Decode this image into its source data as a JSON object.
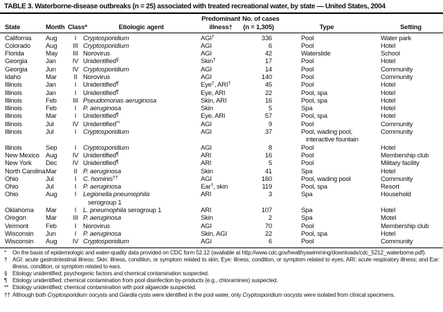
{
  "title": "TABLE 3. Waterborne-disease outbreaks (n = 25) associated with treated recreational water, by state — United States, 2004",
  "table": {
    "headers": {
      "state": "State",
      "month": "Month",
      "class": "Class*",
      "agent": "Etiologic agent",
      "illness_top": "Predominant",
      "illness_bottom": "illness†",
      "cases_top": "No. of cases",
      "cases_bottom": "(n = 1,305)",
      "type": "Type",
      "setting": "Setting"
    },
    "rows": [
      {
        "state": "California",
        "month": "Aug",
        "class": "I",
        "agent": [
          {
            "t": "Cryptosporidium",
            "i": true
          }
        ],
        "illness": [
          {
            "t": "AGI"
          },
          {
            "t": "†",
            "s": true
          }
        ],
        "cases": "336",
        "type": "Pool",
        "setting": "Water park"
      },
      {
        "state": "Colorado",
        "month": "Aug",
        "class": "III",
        "agent": [
          {
            "t": "Cryptosporidium",
            "i": true
          }
        ],
        "illness": "AGI",
        "cases": "6",
        "type": "Pool",
        "setting": "Hotel"
      },
      {
        "state": "Florida",
        "month": "May",
        "class": "III",
        "agent": "Norovirus",
        "illness": "AGI",
        "cases": "42",
        "type": "Waterslide",
        "setting": "School"
      },
      {
        "state": "Georgia",
        "month": "Jan",
        "class": "IV",
        "agent": [
          {
            "t": "Unidentified"
          },
          {
            "t": "§",
            "s": true
          }
        ],
        "illness": [
          {
            "t": "Skin"
          },
          {
            "t": "†",
            "s": true
          }
        ],
        "cases": "17",
        "type": "Pool",
        "setting": "Hotel"
      },
      {
        "state": "Georgia",
        "month": "Jun",
        "class": "IV",
        "agent": [
          {
            "t": "Cryptosporidium",
            "i": true
          }
        ],
        "illness": "AGI",
        "cases": "14",
        "type": "Pool",
        "setting": "Community"
      },
      {
        "state": "Idaho",
        "month": "Mar",
        "class": "II",
        "agent": "Norovirus",
        "illness": "AGI",
        "cases": "140",
        "type": "Pool",
        "setting": "Community"
      },
      {
        "state": "Illinois",
        "month": "Jan",
        "class": "I",
        "agent": [
          {
            "t": "Unidentified"
          },
          {
            "t": "¶",
            "s": true
          }
        ],
        "illness": [
          {
            "t": "Eye"
          },
          {
            "t": "†",
            "s": true
          },
          {
            "t": ", ARI"
          },
          {
            "t": "†",
            "s": true
          }
        ],
        "cases": "45",
        "type": "Pool",
        "setting": "Hotel"
      },
      {
        "state": "Illinois",
        "month": "Jan",
        "class": "I",
        "agent": [
          {
            "t": "Unidentified"
          },
          {
            "t": "¶",
            "s": true
          }
        ],
        "illness": "Eye, ARI",
        "cases": "22",
        "type": "Pool, spa",
        "setting": "Hotel"
      },
      {
        "state": "Illinois",
        "month": "Feb",
        "class": "III",
        "agent": [
          {
            "t": "Pseudomonas aeruginosa",
            "i": true
          }
        ],
        "illness": "Skin, ARI",
        "cases": "16",
        "type": "Pool, spa",
        "setting": "Hotel"
      },
      {
        "state": "Illinois",
        "month": "Feb",
        "class": "I",
        "agent": [
          {
            "t": "P. aeruginosa",
            "i": true
          }
        ],
        "illness": "Skin",
        "cases": "5",
        "type": "Spa",
        "setting": "Hotel"
      },
      {
        "state": "Illinois",
        "month": "Mar",
        "class": "I",
        "agent": [
          {
            "t": "Unidentified"
          },
          {
            "t": "¶",
            "s": true
          }
        ],
        "illness": "Eye, ARI",
        "cases": "57",
        "type": "Pool, spa",
        "setting": "Hotel"
      },
      {
        "state": "Illinois",
        "month": "Jul",
        "class": "IV",
        "agent": [
          {
            "t": "Unidentified"
          },
          {
            "t": "**",
            "s": true
          }
        ],
        "illness": "AGI",
        "cases": "9",
        "type": "Pool",
        "setting": "Community"
      },
      {
        "state": "Illinois",
        "month": "Jul",
        "class": "I",
        "agent": [
          {
            "t": "Cryptosporidium",
            "i": true
          }
        ],
        "illness": "AGI",
        "cases": "37",
        "type": [
          {
            "t": "Pool, wading pool,"
          },
          {
            "br": true
          },
          {
            "t": "interactive fountain",
            "ind": true
          }
        ],
        "setting": "Community"
      },
      {
        "state": "Illinois",
        "month": "Sep",
        "class": "I",
        "agent": [
          {
            "t": "Cryptosporidium",
            "i": true
          }
        ],
        "illness": "AGI",
        "cases": "8",
        "type": "Pool",
        "setting": "Hotel"
      },
      {
        "state": "New Mexico",
        "month": "Aug",
        "class": "IV",
        "agent": [
          {
            "t": "Unidentified"
          },
          {
            "t": "¶",
            "s": true
          }
        ],
        "illness": "ARI",
        "cases": "16",
        "type": "Pool",
        "setting": "Membership club"
      },
      {
        "state": "New York",
        "month": "Dec",
        "class": "IV",
        "agent": [
          {
            "t": "Unidentified"
          },
          {
            "t": "¶",
            "s": true
          }
        ],
        "illness": "ARI",
        "cases": "5",
        "type": "Pool",
        "setting": "Military facility"
      },
      {
        "state": "North Carolina",
        "month": "Mar",
        "class": "II",
        "agent": [
          {
            "t": "P. aeruginosa",
            "i": true
          }
        ],
        "illness": "Skin",
        "cases": "41",
        "type": "Spa",
        "setting": "Hotel"
      },
      {
        "state": "Ohio",
        "month": "Jul",
        "class": "I",
        "agent": [
          {
            "t": "C. hominis",
            "i": true
          },
          {
            "t": "††",
            "s": true
          }
        ],
        "illness": "AGI",
        "cases": "160",
        "type": "Pool, wading pool",
        "setting": "Community"
      },
      {
        "state": "Ohio",
        "month": "Jul",
        "class": "I",
        "agent": [
          {
            "t": "P. aeruginosa",
            "i": true
          }
        ],
        "illness": [
          {
            "t": "Ear"
          },
          {
            "t": "†",
            "s": true
          },
          {
            "t": ", skin"
          }
        ],
        "cases": "119",
        "type": "Pool, spa",
        "setting": "Resort"
      },
      {
        "state": "Ohio",
        "month": "Aug",
        "class": "I",
        "agent": [
          {
            "t": "Legionella pneumophila",
            "i": true
          },
          {
            "br": true
          },
          {
            "t": "serogroup 1",
            "ind": true
          }
        ],
        "illness": "ARI",
        "cases": "3",
        "type": "Spa",
        "setting": "Household"
      },
      {
        "state": "Oklahoma",
        "month": "Mar",
        "class": "I",
        "agent": [
          {
            "t": "L. pneumophila",
            "i": true
          },
          {
            "t": " serogroup 1"
          }
        ],
        "illness": "ARI",
        "cases": "107",
        "type": "Spa",
        "setting": "Hotel"
      },
      {
        "state": "Oregon",
        "month": "Mar",
        "class": "III",
        "agent": [
          {
            "t": "P. aeruginosa",
            "i": true
          }
        ],
        "illness": "Skin",
        "cases": "2",
        "type": "Spa",
        "setting": "Motel"
      },
      {
        "state": "Vermont",
        "month": "Feb",
        "class": "I",
        "agent": "Norovirus",
        "illness": "AGI",
        "cases": "70",
        "type": "Pool",
        "setting": "Membership club"
      },
      {
        "state": "Wisconsin",
        "month": "Jun",
        "class": "I",
        "agent": [
          {
            "t": "P. aeruginosa",
            "i": true
          }
        ],
        "illness": "Skin, AGI",
        "cases": "22",
        "type": "Pool, spa",
        "setting": "Hotel"
      },
      {
        "state": "Wisconsin",
        "month": "Aug",
        "class": "IV",
        "agent": [
          {
            "t": "Cryptosporidium",
            "i": true
          }
        ],
        "illness": "AGI",
        "cases": "6",
        "type": "Pool",
        "setting": "Community"
      }
    ]
  },
  "footnotes": [
    {
      "marker": "*",
      "segments": [
        {
          "t": "On the basis of epidemiologic and water-quality data provided on CDC form 52.12 (available at http://www.cdc.gov/healthyswimming/downloads/cdc_5212_waterborne.pdf)."
        }
      ]
    },
    {
      "marker": "†",
      "segments": [
        {
          "t": "AGI: acute gastrointestinal illness; Skin: illness, condition, or symptom related to skin; Eye: illness, condition, or symptom related to eyes; ARI: acute respiratory illness; and Ear: illness, condition, or symptom related to ears."
        }
      ]
    },
    {
      "marker": "§",
      "segments": [
        {
          "t": "Etiology unidentified; psychogenic factors and chemical contamination suspected."
        }
      ]
    },
    {
      "marker": "¶",
      "segments": [
        {
          "t": "Etiology unidentified; chemical contamination from pool disinfection by-products (e.g., chloramines) suspected."
        }
      ]
    },
    {
      "marker": "**",
      "segments": [
        {
          "t": "Etiology unidentified; chemical contamination with pool algaecide suspected."
        }
      ]
    },
    {
      "marker": "††",
      "segments": [
        {
          "t": "Although both "
        },
        {
          "t": "Cryptosporidium",
          "i": true
        },
        {
          "t": " oocysts and "
        },
        {
          "t": "Giardia",
          "i": true
        },
        {
          "t": " cysts were identified in the pool water, only "
        },
        {
          "t": "Cryptosporidium",
          "i": true
        },
        {
          "t": " oocysts were isolated from clinical specimens."
        }
      ]
    }
  ]
}
